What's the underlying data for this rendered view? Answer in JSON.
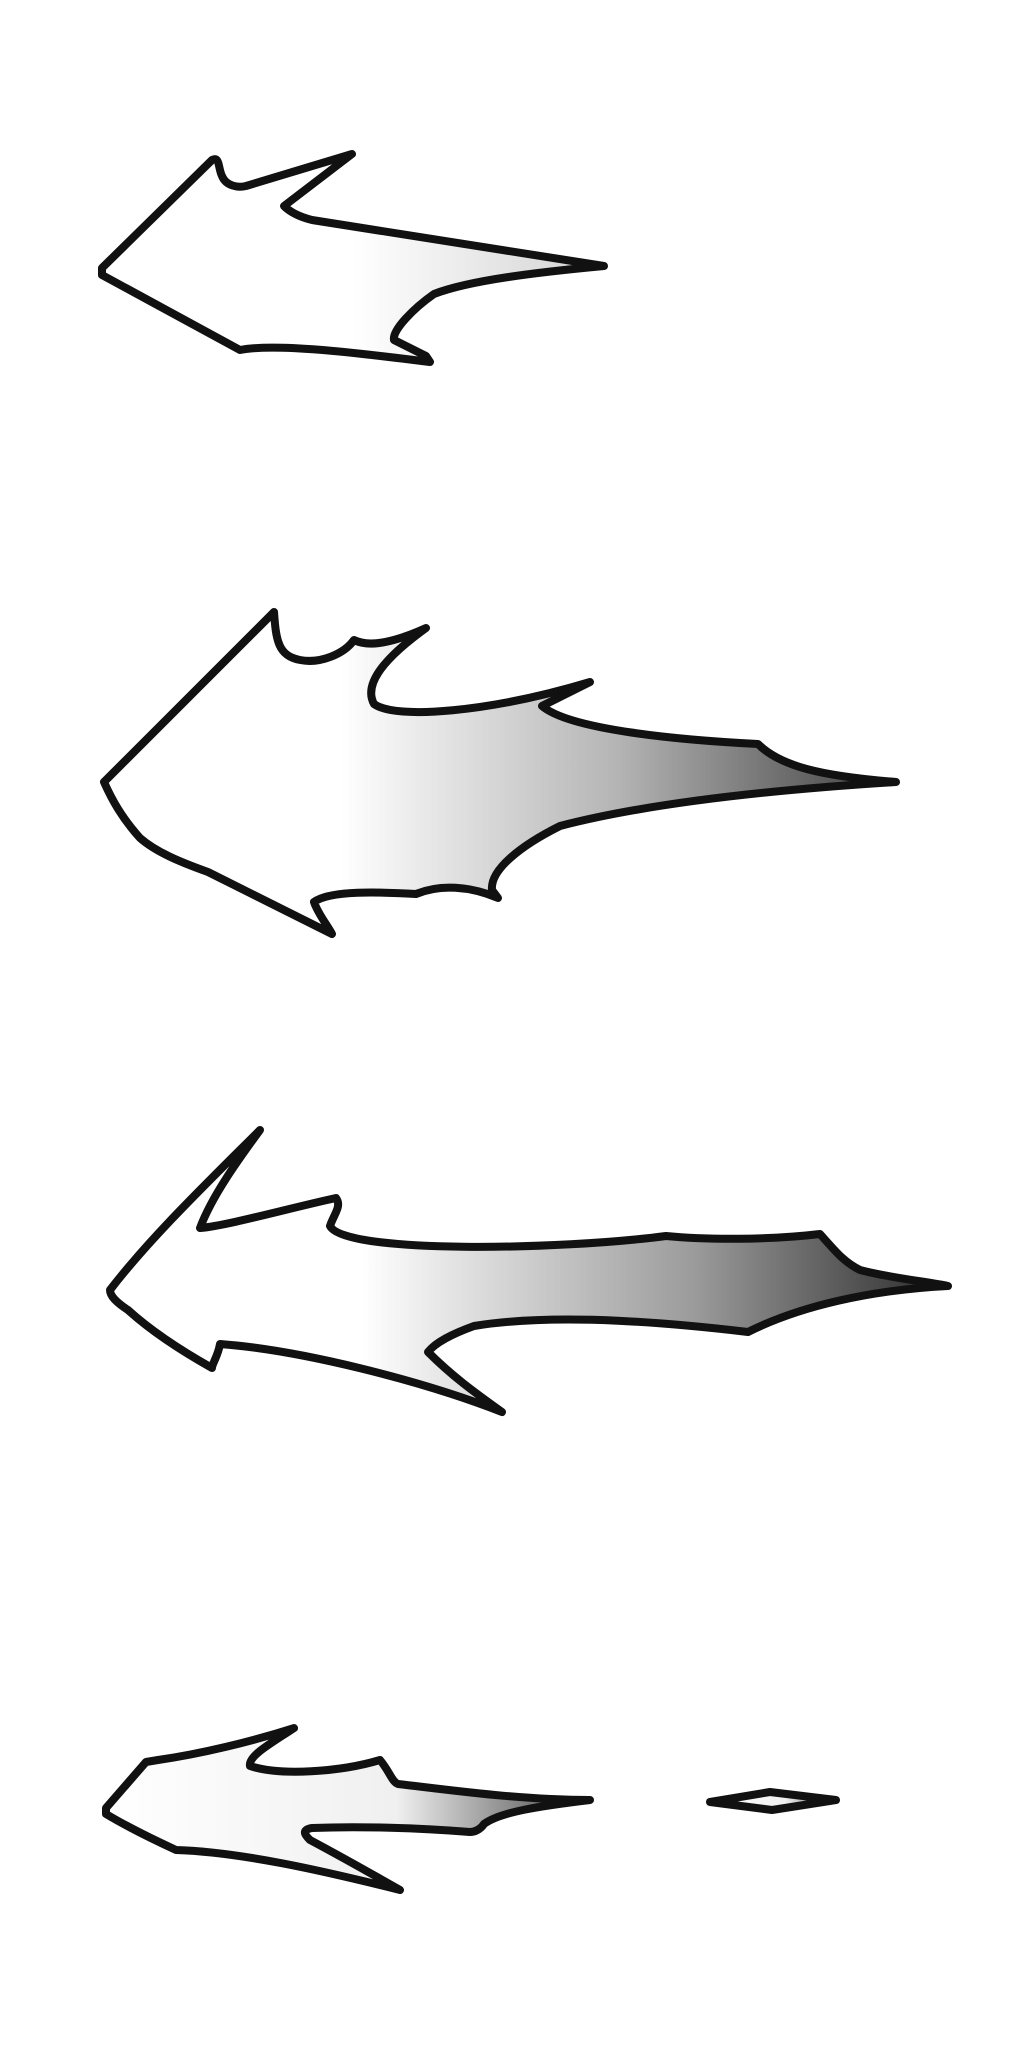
{
  "colors": {
    "background": "#ffffff",
    "outline": "#111111",
    "fill_light": "#ffffff",
    "fill_mid": "#b4b4b4",
    "fill_dark": "#2a2a2a"
  },
  "icons": [
    {
      "name": "arrow-left-icon-1",
      "style": "outline-arrow-light-gradient"
    },
    {
      "name": "arrow-left-icon-2",
      "style": "jagged-arrow-gray-gradient"
    },
    {
      "name": "arrow-left-icon-3",
      "style": "long-arrow-dark-gradient"
    },
    {
      "name": "arrow-left-icon-4",
      "style": "small-arrow-with-fragment"
    }
  ]
}
